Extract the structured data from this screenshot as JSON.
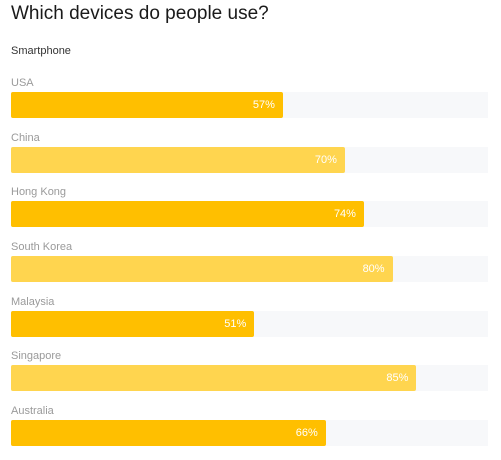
{
  "chart_data": {
    "type": "bar",
    "orientation": "horizontal",
    "title": "Which devices do people use?",
    "subtitle": "Smartphone",
    "categories": [
      "USA",
      "China",
      "Hong Kong",
      "South Korea",
      "Malaysia",
      "Singapore",
      "Australia"
    ],
    "values": [
      57,
      70,
      74,
      80,
      51,
      85,
      66
    ],
    "value_labels": [
      "57%",
      "70%",
      "74%",
      "80%",
      "51%",
      "85%",
      "66%"
    ],
    "unit": "%",
    "xlim": [
      0,
      100
    ],
    "grid": false,
    "colors": {
      "primary": "#ffbf00",
      "secondary": "#ffd54f",
      "track": "#f7f8fa"
    }
  }
}
